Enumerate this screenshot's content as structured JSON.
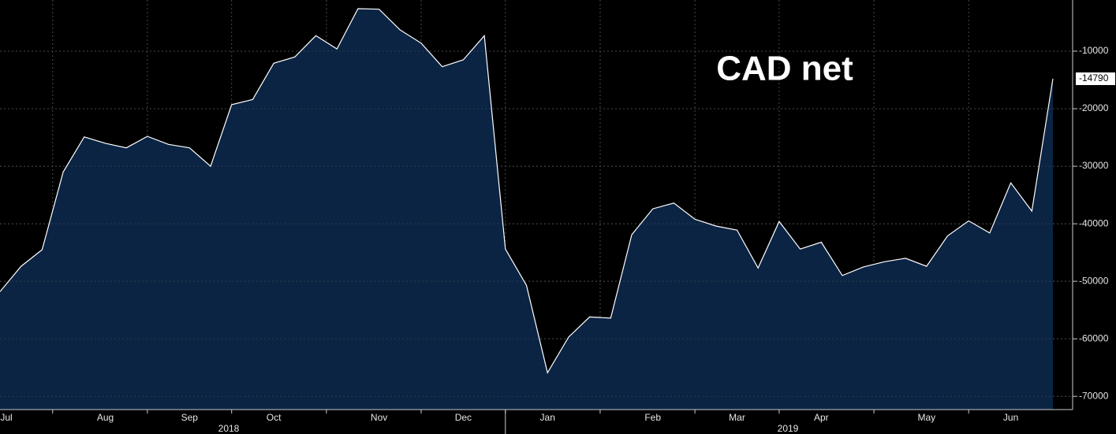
{
  "chart_data": {
    "type": "area",
    "title": "CAD net",
    "categories": [
      "Jul",
      null,
      null,
      null,
      null,
      "Aug",
      null,
      null,
      null,
      "Sep",
      null,
      null,
      null,
      "Oct",
      null,
      null,
      null,
      null,
      "Nov",
      null,
      null,
      null,
      "Dec",
      null,
      null,
      null,
      "Jan",
      null,
      null,
      null,
      null,
      "Feb",
      null,
      null,
      null,
      "Mar",
      null,
      null,
      null,
      "Apr",
      null,
      null,
      null,
      null,
      "May",
      null,
      null,
      null,
      "Jun",
      null,
      null
    ],
    "years": [
      "2018",
      "2019"
    ],
    "values": [
      -51800,
      -47400,
      -44500,
      -31000,
      -24900,
      -26000,
      -26800,
      -24800,
      -26200,
      -26800,
      -30000,
      -19300,
      -18400,
      -12100,
      -11000,
      -7300,
      -9600,
      -2600,
      -2700,
      -6300,
      -8600,
      -12700,
      -11500,
      -7300,
      -44400,
      -50700,
      -65900,
      -59700,
      -56200,
      -56400,
      -41900,
      -37400,
      -36400,
      -39200,
      -40400,
      -41100,
      -47700,
      -39600,
      -44400,
      -43200,
      -49000,
      -47500,
      -46600,
      -46000,
      -47400,
      -42100,
      -39500,
      -41600,
      -32900,
      -37800,
      -14790
    ],
    "color": "#0b2444",
    "line_color": "#ffffff",
    "ylim": [
      -72300,
      -1100
    ],
    "yticks": [
      -10000,
      -20000,
      -30000,
      -40000,
      -50000,
      -60000,
      -70000
    ],
    "grid": true
  }
}
